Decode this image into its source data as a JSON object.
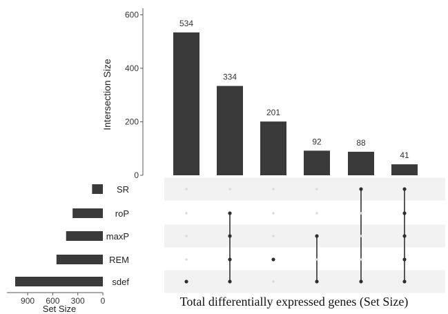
{
  "chart_data": {
    "type": "bar",
    "title": "",
    "caption": "Total differentially expressed genes (Set Size)",
    "intersection": {
      "ylabel": "Intersection Size",
      "ylim": [
        0,
        620
      ],
      "yticks": [
        "0",
        "200",
        "400",
        "600"
      ],
      "values": [
        534,
        334,
        201,
        92,
        88,
        41
      ],
      "labels": [
        "534",
        "334",
        "201",
        "92",
        "88",
        "41"
      ],
      "members": [
        [
          "sdef"
        ],
        [
          "roP",
          "maxP",
          "REM",
          "sdef"
        ],
        [
          "REM"
        ],
        [
          "maxP",
          "sdef"
        ],
        [
          "SR",
          "sdef"
        ],
        [
          "SR",
          "roP",
          "maxP",
          "REM",
          "sdef"
        ]
      ]
    },
    "sets": {
      "names": [
        "SR",
        "roP",
        "maxP",
        "REM",
        "sdef"
      ],
      "sizes": [
        129,
        362,
        440,
        555,
        1049
      ],
      "xlabel": "Set Size",
      "xticks": [
        "900",
        "600",
        "300",
        "0"
      ],
      "xtick_values": [
        900,
        600,
        300,
        0
      ]
    },
    "colors": {
      "bar": "#3a3a3a",
      "dot_active": "#2e2e2e",
      "dot_inactive": "#dcdcdc",
      "stripe": "#f2f2f2",
      "axis": "#555555",
      "text": "#222222"
    }
  }
}
